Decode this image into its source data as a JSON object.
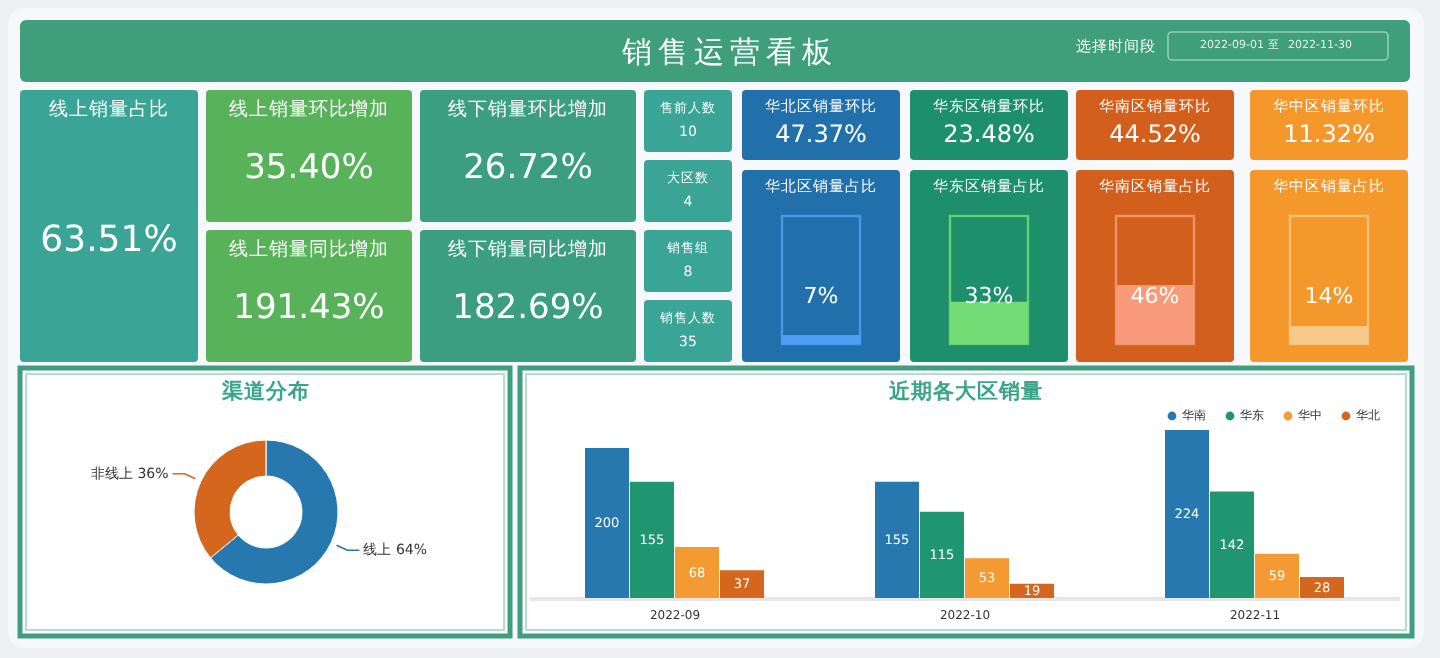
{
  "chart_data": [
    {
      "type": "other",
      "title": "销售运营看板",
      "annotations": [
        "选择时间段",
        "2022-09-01",
        "至",
        "2022-11-30",
        "线上销量占比",
        "63.51%",
        "线上销量环比增加",
        "35.40%",
        "线上销量同比增加",
        "191.43%",
        "线下销量环比增加",
        "26.72%",
        "线下销量同比增加",
        "182.69%",
        "售前人数",
        "10",
        "大区数",
        "4",
        "销售组",
        "8",
        "销售人数",
        "35",
        "华北区销量环比",
        "47.37%",
        "华东区销量环比",
        "23.48%",
        "华南区销量环比",
        "44.52%",
        "华中区销量环比",
        "11.32%"
      ]
    },
    {
      "type": "other",
      "title": "华北区销量占比",
      "values": [
        7
      ],
      "value_labels": [
        "7%"
      ],
      "color": "#4e9ff5"
    },
    {
      "type": "other",
      "title": "华东区销量占比",
      "values": [
        33
      ],
      "value_labels": [
        "33%"
      ],
      "color": "#74dc74"
    },
    {
      "type": "other",
      "title": "华南区销量占比",
      "values": [
        46
      ],
      "value_labels": [
        "46%"
      ],
      "color": "#f79b7b"
    },
    {
      "type": "other",
      "title": "华中区销量占比",
      "values": [
        14
      ],
      "value_labels": [
        "14%"
      ],
      "color": "#f7c98a"
    },
    {
      "type": "donut",
      "title": "渠道分布",
      "categories": [
        "线上",
        "非线上"
      ],
      "values": [
        64,
        36
      ],
      "value_labels": [
        "64%",
        "36%"
      ],
      "colors": [
        "#2878b0",
        "#d4661e"
      ]
    },
    {
      "type": "bar",
      "title": "近期各大区销量",
      "categories": [
        "2022-09",
        "2022-10",
        "2022-11"
      ],
      "data_labels": true,
      "legend": "top right",
      "series": [
        {
          "name": "华南",
          "color": "#2878b0",
          "values": [
            200,
            155,
            224
          ]
        },
        {
          "name": "华东",
          "color": "#1f9670",
          "values": [
            155,
            115,
            142
          ]
        },
        {
          "name": "华中",
          "color": "#f49a32",
          "values": [
            68,
            53,
            59
          ]
        },
        {
          "name": "华北",
          "color": "#d4661e",
          "values": [
            37,
            19,
            28
          ]
        }
      ]
    }
  ]
}
